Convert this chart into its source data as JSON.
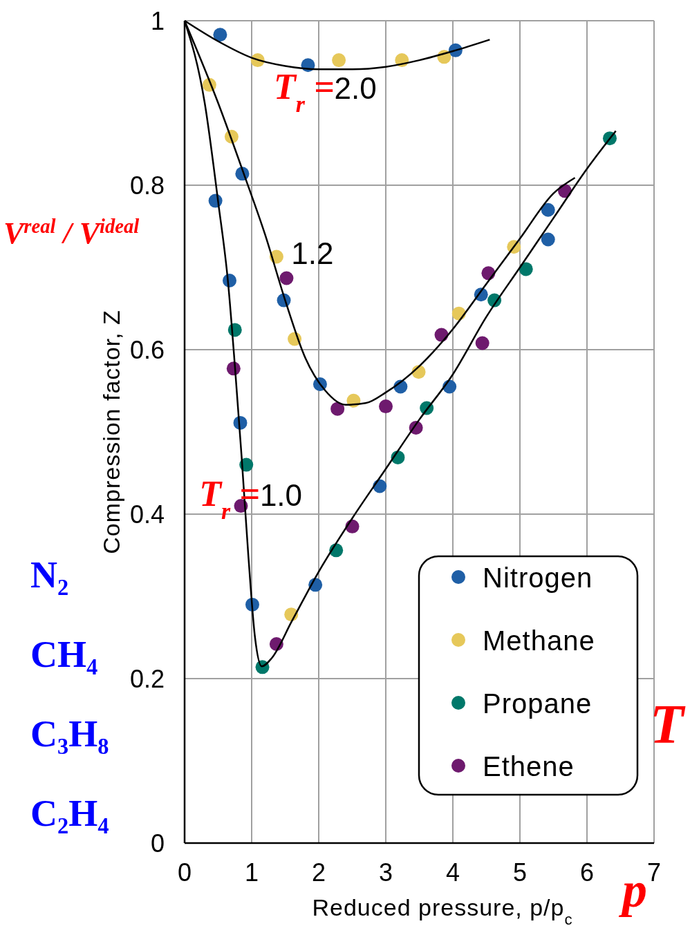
{
  "chart_data": {
    "type": "scatter",
    "xlabel": "Reduced pressure, p/p$_{c}$",
    "ylabel": "Compression factor, Z",
    "xlim": [
      0,
      7
    ],
    "ylim": [
      0,
      1
    ],
    "xticks": [
      0,
      1,
      2,
      3,
      4,
      5,
      6,
      7
    ],
    "yticks": [
      0,
      0.2,
      0.4,
      0.6,
      0.8,
      1
    ],
    "grid": true,
    "legend": "bottom right",
    "series": [
      {
        "name": "Nitrogen",
        "color": "#1f5fa6",
        "marker": "circle",
        "x": [
          0.53,
          1.84,
          4.04,
          0.86,
          0.46,
          0.67,
          1.48,
          0.83,
          2.02,
          3.22,
          3.95,
          4.42,
          5.42,
          5.42,
          2.91,
          1.95,
          1.01
        ],
        "values": [
          0.983,
          0.946,
          0.964,
          0.814,
          0.781,
          0.684,
          0.66,
          0.511,
          0.558,
          0.555,
          0.555,
          0.667,
          0.77,
          0.734,
          0.434,
          0.314,
          0.29
        ]
      },
      {
        "name": "Methane",
        "color": "#e6c85a",
        "marker": "circle",
        "x": [
          1.09,
          2.3,
          3.24,
          3.87,
          0.37,
          0.7,
          1.37,
          1.64,
          2.52,
          3.49,
          4.09,
          4.91,
          1.59
        ],
        "values": [
          0.952,
          0.952,
          0.952,
          0.956,
          0.922,
          0.859,
          0.713,
          0.613,
          0.538,
          0.573,
          0.644,
          0.725,
          0.278
        ]
      },
      {
        "name": "Propane",
        "color": "#00786a",
        "marker": "circle",
        "x": [
          0.75,
          0.92,
          1.16,
          2.26,
          3.18,
          3.61,
          4.62,
          5.09,
          6.34
        ],
        "values": [
          0.624,
          0.46,
          0.214,
          0.356,
          0.469,
          0.529,
          0.66,
          0.698,
          0.857
        ]
      },
      {
        "name": "Ethene",
        "color": "#6e1a6e",
        "marker": "circle",
        "x": [
          1.52,
          0.73,
          0.84,
          1.37,
          2.28,
          3.0,
          2.5,
          3.45,
          3.83,
          4.44,
          4.53,
          5.67
        ],
        "values": [
          0.687,
          0.577,
          0.41,
          0.242,
          0.528,
          0.531,
          0.385,
          0.505,
          0.618,
          0.608,
          0.693,
          0.793
        ]
      },
      {
        "type": "line",
        "color": "#000000",
        "x": [
          0,
          0.5,
          1,
          1.5,
          2,
          2.5,
          3,
          3.5,
          4,
          4.55
        ],
        "values": [
          1,
          0.975,
          0.955,
          0.945,
          0.941,
          0.941,
          0.944,
          0.952,
          0.963,
          0.977
        ]
      },
      {
        "type": "line",
        "color": "#000000",
        "x": [
          0,
          0.5,
          0.9,
          1.2,
          1.5,
          1.8,
          2.1,
          2.4,
          2.7,
          3.0,
          3.5,
          4,
          4.5,
          5,
          5.5,
          5.82
        ],
        "values": [
          1,
          0.9,
          0.81,
          0.74,
          0.66,
          0.59,
          0.55,
          0.533,
          0.535,
          0.548,
          0.58,
          0.625,
          0.68,
          0.735,
          0.79,
          0.809
        ]
      },
      {
        "type": "line",
        "color": "#000000",
        "x": [
          0,
          0.3,
          0.5,
          0.65,
          0.75,
          0.85,
          0.95,
          1.05,
          1.15,
          1.3,
          1.6,
          2,
          2.5,
          3,
          3.5,
          4,
          4.5,
          5,
          5.5,
          6,
          6.43
        ],
        "values": [
          1,
          0.9,
          0.78,
          0.68,
          0.58,
          0.47,
          0.35,
          0.25,
          0.215,
          0.225,
          0.27,
          0.33,
          0.395,
          0.455,
          0.515,
          0.57,
          0.64,
          0.7,
          0.76,
          0.82,
          0.866
        ]
      }
    ],
    "annotations": [
      "T$_{r}$ =2.0",
      "1.2",
      "T$_{r}$ =1.0",
      "V$^{real}$ / V$^{ideal}$",
      "N₂",
      "CH₄",
      "C₃H₈",
      "C₂H₄",
      "T",
      "p"
    ]
  }
}
